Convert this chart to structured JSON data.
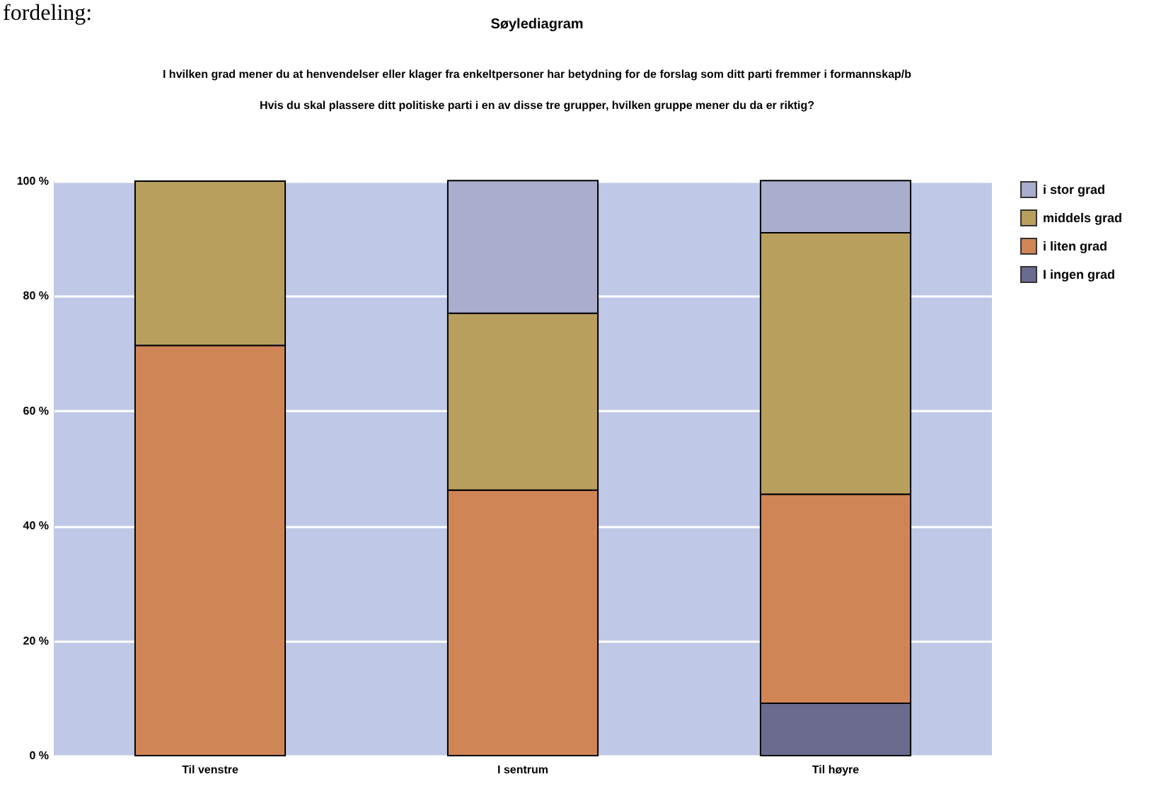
{
  "chart_data": {
    "type": "bar",
    "stacked": true,
    "title": "Søylediagram",
    "subtitle": "I hvilken grad mener du at henvendelser eller klager  fra enkeltpersoner har betydning for de forslag som ditt parti fremmer i formannskap/b\nHvis du skal  plassere ditt politiske parti  i en av disse tre grupper, hvilken gruppe mener du da er riktig?",
    "annotations": [
      "fordeling:"
    ],
    "categories": [
      "Til venstre",
      "I sentrum",
      "Til høyre"
    ],
    "series": [
      {
        "name": "I ingen grad",
        "color": "#6a6b8e",
        "values": [
          null,
          null,
          9.1
        ]
      },
      {
        "name": "i liten grad",
        "color": "#cf8556",
        "values": [
          71.4,
          46.2,
          36.4
        ]
      },
      {
        "name": "middels grad",
        "color": "#b89f5e",
        "values": [
          28.6,
          30.8,
          45.5
        ]
      },
      {
        "name": "i stor grad",
        "color": "#abadcc",
        "values": [
          null,
          23.1,
          9.1
        ]
      }
    ],
    "ylim": [
      0,
      100
    ],
    "yticks": [
      {
        "value": 0,
        "label": "0 %"
      },
      {
        "value": 20,
        "label": "20 %"
      },
      {
        "value": 40,
        "label": "40 %"
      },
      {
        "value": 60,
        "label": "60 %"
      },
      {
        "value": 80,
        "label": "80 %"
      },
      {
        "value": 100,
        "label": "100 %"
      }
    ],
    "grid": "y",
    "legend": "top right"
  }
}
